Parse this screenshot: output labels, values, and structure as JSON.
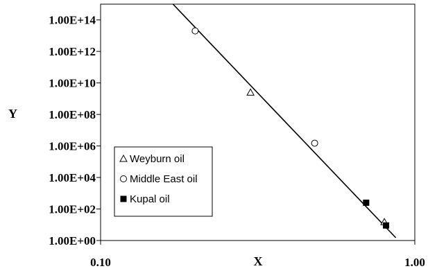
{
  "chart_data": {
    "type": "scatter",
    "xlabel": "X",
    "ylabel": "Y",
    "x_scale": "log",
    "y_scale": "log",
    "xlim": [
      0.1,
      1.0
    ],
    "ylim": [
      1,
      1000000000000000.0
    ],
    "x_ticks": [
      {
        "value": 0.1,
        "label": "0.10"
      },
      {
        "value": 1.0,
        "label": "1.00"
      }
    ],
    "y_ticks": [
      {
        "value": 1,
        "label": "1.00E+00"
      },
      {
        "value": 100,
        "label": "1.00E+02"
      },
      {
        "value": 10000,
        "label": "1.00E+04"
      },
      {
        "value": 1000000,
        "label": "1.00E+06"
      },
      {
        "value": 100000000,
        "label": "1.00E+08"
      },
      {
        "value": 10000000000,
        "label": "1.00E+10"
      },
      {
        "value": 1000000000000,
        "label": "1.00E+12"
      },
      {
        "value": 100000000000000,
        "label": "1.00E+14"
      }
    ],
    "grid": false,
    "legend_position": "lower-left",
    "series": [
      {
        "name": "Weyburn oil",
        "marker": "triangle-open",
        "points": [
          [
            0.3,
            2500000000.0
          ],
          [
            0.8,
            15
          ]
        ]
      },
      {
        "name": "Middle East oil",
        "marker": "circle-open",
        "points": [
          [
            0.2,
            20000000000000.0
          ],
          [
            0.48,
            1500000.0
          ]
        ]
      },
      {
        "name": "Kupal oil",
        "marker": "square-filled",
        "points": [
          [
            0.7,
            250
          ],
          [
            0.81,
            9
          ]
        ]
      }
    ],
    "fit_line": {
      "points": [
        [
          0.17,
          1000000000000000.0
        ],
        [
          0.87,
          1.5
        ]
      ]
    }
  }
}
